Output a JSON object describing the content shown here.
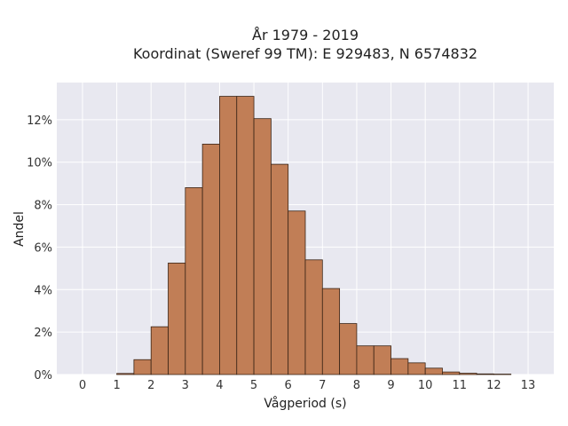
{
  "chart_data": {
    "type": "bar",
    "title": "År 1979 - 2019",
    "subtitle": "Koordinat (Sweref 99 TM): E 929483, N 6574832",
    "xlabel": "Vågperiod (s)",
    "ylabel": "Andel",
    "xlim": [
      -0.75,
      13.75
    ],
    "ylim": [
      0,
      13.75
    ],
    "x_ticks": [
      "0",
      "1",
      "2",
      "3",
      "4",
      "5",
      "6",
      "7",
      "8",
      "9",
      "10",
      "11",
      "12",
      "13"
    ],
    "y_ticks": [
      "0%",
      "2%",
      "4%",
      "6%",
      "8%",
      "10%",
      "12%"
    ],
    "y_tick_values": [
      0,
      2,
      4,
      6,
      8,
      10,
      12
    ],
    "bin_width": 0.5,
    "bin_starts": [
      1.0,
      1.5,
      2.0,
      2.5,
      3.0,
      3.5,
      4.0,
      4.5,
      5.0,
      5.5,
      6.0,
      6.5,
      7.0,
      7.5,
      8.0,
      8.5,
      9.0,
      9.5,
      10.0,
      10.5,
      11.0,
      11.5,
      12.0
    ],
    "values": [
      0.05,
      0.7,
      2.25,
      5.25,
      8.8,
      10.85,
      13.1,
      13.1,
      12.05,
      9.9,
      7.7,
      5.4,
      4.05,
      2.4,
      1.35,
      1.35,
      0.75,
      0.55,
      0.3,
      0.12,
      0.06,
      0.03,
      0.02
    ],
    "grid": true,
    "colors": {
      "bar_fill": "#c17e56",
      "bar_edge": "#3a2416",
      "plot_background": "#e8e8f0",
      "grid": "#ffffff"
    }
  }
}
